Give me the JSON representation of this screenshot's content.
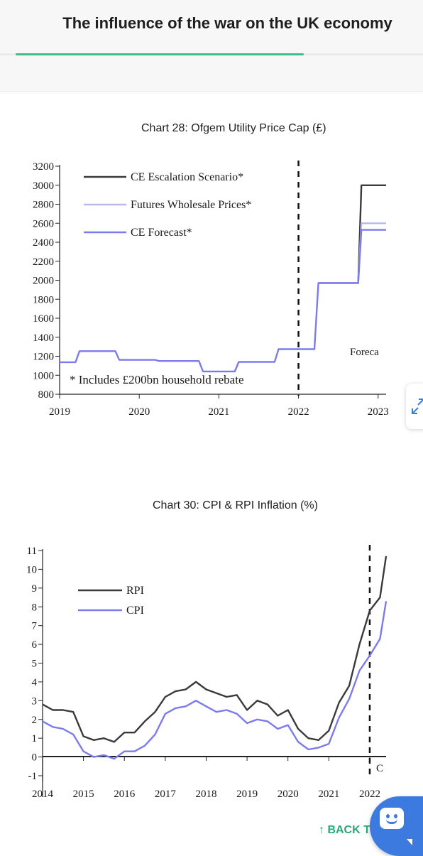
{
  "header": {
    "title": "The influence of the war on the UK economy"
  },
  "chart28": {
    "caption": "Chart 28: Ofgem Utility Price Cap (£)"
  },
  "chart30": {
    "caption": "Chart 30: CPI & RPI Inflation (%)"
  },
  "back_to_top": "↑ BACK TO",
  "icons": {
    "expand": "expand-arrows-icon",
    "chat": "chat-bot-icon"
  },
  "colors": {
    "accent": "#3cbf8c",
    "link": "#2fa57a",
    "chat": "#3d7ae0",
    "escalation": "#3a3a3a",
    "futures": "#b9b9f0",
    "forecast": "#7b7bee",
    "cpi": "#7b7bee",
    "rpi": "#3a3a3a"
  },
  "chart_data": [
    {
      "type": "line",
      "title": "Chart 28: Ofgem Utility Price Cap (£)",
      "x_ticks": [
        "2019",
        "2020",
        "2021",
        "2022",
        "2023"
      ],
      "y_ticks": [
        "800",
        "1000",
        "1200",
        "1400",
        "1600",
        "1800",
        "2000",
        "2200",
        "2400",
        "2600",
        "2800",
        "3000",
        "3200"
      ],
      "ylim": [
        800,
        3200
      ],
      "xlim": [
        2019.0,
        2023.1
      ],
      "annotations": {
        "note": "* Includes £200bn household rebate",
        "forecast_label": "Foreca"
      },
      "forecast_start": 2022.0,
      "series": [
        {
          "name": "CE Escalation Scenario*",
          "color": "#3a3a3a",
          "points": [
            [
              2022.25,
              1971
            ],
            [
              2022.75,
              1971
            ],
            [
              2022.79,
              3000
            ],
            [
              2023.1,
              3000
            ]
          ]
        },
        {
          "name": "Futures Wholesale Prices*",
          "color": "#b9b9f0",
          "points": [
            [
              2022.25,
              1971
            ],
            [
              2022.75,
              1971
            ],
            [
              2022.79,
              2600
            ],
            [
              2023.1,
              2600
            ]
          ]
        },
        {
          "name": "CE Forecast*",
          "color": "#7b7bee",
          "points": [
            [
              2019.0,
              1137
            ],
            [
              2019.2,
              1137
            ],
            [
              2019.25,
              1254
            ],
            [
              2019.7,
              1254
            ],
            [
              2019.75,
              1162
            ],
            [
              2020.2,
              1162
            ],
            [
              2020.25,
              1150
            ],
            [
              2020.75,
              1150
            ],
            [
              2020.8,
              1040
            ],
            [
              2021.2,
              1040
            ],
            [
              2021.25,
              1140
            ],
            [
              2021.7,
              1140
            ],
            [
              2021.75,
              1275
            ],
            [
              2022.2,
              1275
            ],
            [
              2022.25,
              1971
            ],
            [
              2022.75,
              1971
            ],
            [
              2022.79,
              2530
            ],
            [
              2023.1,
              2530
            ]
          ]
        }
      ]
    },
    {
      "type": "line",
      "title": "Chart 30: CPI & RPI Inflation (%)",
      "x_ticks": [
        "2014",
        "2015",
        "2016",
        "2017",
        "2018",
        "2019",
        "2020",
        "2021",
        "2022"
      ],
      "y_ticks": [
        "-1",
        "0",
        "1",
        "2",
        "3",
        "4",
        "5",
        "6",
        "7",
        "8",
        "9",
        "10",
        "11"
      ],
      "ylim": [
        -1,
        11
      ],
      "xlim": [
        2014.0,
        2022.4
      ],
      "forecast_start": 2022.0,
      "annotations": {
        "forecast_label": "C"
      },
      "series": [
        {
          "name": "RPI",
          "color": "#3a3a3a",
          "points": [
            [
              2014.0,
              2.8
            ],
            [
              2014.25,
              2.5
            ],
            [
              2014.5,
              2.5
            ],
            [
              2014.75,
              2.4
            ],
            [
              2015.0,
              1.1
            ],
            [
              2015.25,
              0.9
            ],
            [
              2015.5,
              1.0
            ],
            [
              2015.75,
              0.8
            ],
            [
              2016.0,
              1.3
            ],
            [
              2016.25,
              1.3
            ],
            [
              2016.5,
              1.9
            ],
            [
              2016.75,
              2.4
            ],
            [
              2017.0,
              3.2
            ],
            [
              2017.25,
              3.5
            ],
            [
              2017.5,
              3.6
            ],
            [
              2017.75,
              4.0
            ],
            [
              2018.0,
              3.6
            ],
            [
              2018.25,
              3.4
            ],
            [
              2018.5,
              3.2
            ],
            [
              2018.75,
              3.3
            ],
            [
              2019.0,
              2.5
            ],
            [
              2019.25,
              3.0
            ],
            [
              2019.5,
              2.8
            ],
            [
              2019.75,
              2.2
            ],
            [
              2020.0,
              2.5
            ],
            [
              2020.25,
              1.5
            ],
            [
              2020.5,
              1.0
            ],
            [
              2020.75,
              0.9
            ],
            [
              2021.0,
              1.4
            ],
            [
              2021.25,
              2.9
            ],
            [
              2021.5,
              3.8
            ],
            [
              2021.75,
              6.0
            ],
            [
              2022.0,
              7.8
            ],
            [
              2022.25,
              8.5
            ],
            [
              2022.4,
              10.7
            ]
          ]
        },
        {
          "name": "CPI",
          "color": "#7b7bee",
          "points": [
            [
              2014.0,
              1.9
            ],
            [
              2014.25,
              1.6
            ],
            [
              2014.5,
              1.5
            ],
            [
              2014.75,
              1.2
            ],
            [
              2015.0,
              0.3
            ],
            [
              2015.25,
              0.0
            ],
            [
              2015.5,
              0.1
            ],
            [
              2015.75,
              -0.1
            ],
            [
              2016.0,
              0.3
            ],
            [
              2016.25,
              0.3
            ],
            [
              2016.5,
              0.6
            ],
            [
              2016.75,
              1.2
            ],
            [
              2017.0,
              2.3
            ],
            [
              2017.25,
              2.6
            ],
            [
              2017.5,
              2.7
            ],
            [
              2017.75,
              3.0
            ],
            [
              2018.0,
              2.7
            ],
            [
              2018.25,
              2.4
            ],
            [
              2018.5,
              2.5
            ],
            [
              2018.75,
              2.3
            ],
            [
              2019.0,
              1.8
            ],
            [
              2019.25,
              2.0
            ],
            [
              2019.5,
              1.9
            ],
            [
              2019.75,
              1.5
            ],
            [
              2020.0,
              1.7
            ],
            [
              2020.25,
              0.8
            ],
            [
              2020.5,
              0.4
            ],
            [
              2020.75,
              0.5
            ],
            [
              2021.0,
              0.7
            ],
            [
              2021.25,
              2.1
            ],
            [
              2021.5,
              3.1
            ],
            [
              2021.75,
              4.6
            ],
            [
              2022.0,
              5.4
            ],
            [
              2022.25,
              6.3
            ],
            [
              2022.4,
              8.3
            ]
          ]
        }
      ]
    }
  ]
}
